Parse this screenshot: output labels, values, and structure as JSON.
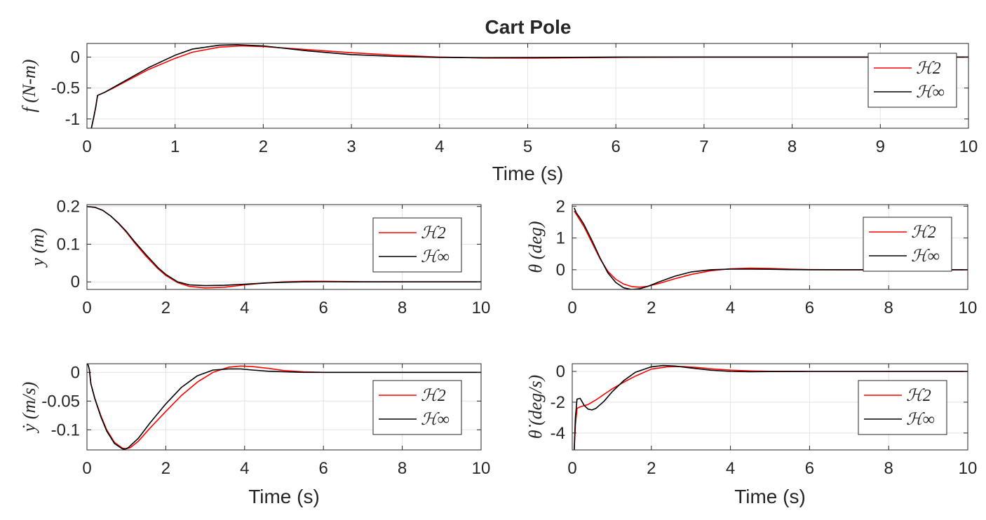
{
  "figure": {
    "title": "Cart Pole"
  },
  "chart_data": [
    {
      "type": "line",
      "title": "Cart Pole",
      "xlabel": "Time (s)",
      "ylabel": "f (N-m)",
      "xlim": [
        0,
        10
      ],
      "ylim": [
        -1.15,
        0.22
      ],
      "xticks": [
        0,
        1,
        2,
        3,
        4,
        5,
        6,
        7,
        8,
        9,
        10
      ],
      "yticks": [
        -1,
        -0.5,
        0
      ],
      "ytick_labels": [
        "-1",
        "-0.5",
        "0"
      ],
      "grid": true,
      "legend": "top-right",
      "series": [
        {
          "name": "H_2",
          "color": "#ff0000",
          "x": [
            0.05,
            0.08,
            0.1,
            0.12,
            0.2,
            0.3,
            0.5,
            0.7,
            1.0,
            1.2,
            1.5,
            1.75,
            2.0,
            2.5,
            3.0,
            3.5,
            4.0,
            4.5,
            5.0,
            5.5,
            6.0,
            7.0,
            8.0,
            9.0,
            10.0
          ],
          "values": [
            -1.15,
            -0.95,
            -0.8,
            -0.62,
            -0.57,
            -0.5,
            -0.35,
            -0.2,
            -0.02,
            0.08,
            0.16,
            0.18,
            0.17,
            0.12,
            0.07,
            0.03,
            0.0,
            -0.015,
            -0.018,
            -0.012,
            -0.005,
            0.0,
            0.0,
            0.0,
            0.0
          ]
        },
        {
          "name": "H_inf",
          "color": "#000000",
          "x": [
            0.05,
            0.08,
            0.1,
            0.12,
            0.2,
            0.3,
            0.5,
            0.7,
            1.0,
            1.2,
            1.5,
            1.7,
            2.0,
            2.5,
            3.0,
            3.5,
            4.0,
            4.5,
            5.0,
            5.5,
            6.0,
            7.0,
            8.0,
            9.0,
            10.0
          ],
          "values": [
            -1.15,
            -0.95,
            -0.8,
            -0.62,
            -0.57,
            -0.49,
            -0.33,
            -0.17,
            0.03,
            0.13,
            0.19,
            0.2,
            0.18,
            0.1,
            0.04,
            0.01,
            -0.005,
            -0.01,
            -0.008,
            -0.004,
            0.0,
            0.0,
            0.0,
            0.0,
            0.0
          ]
        }
      ],
      "legend_labels": [
        "ℋ2",
        "ℋ∞"
      ]
    },
    {
      "type": "line",
      "title": "",
      "xlabel": "",
      "ylabel": "y (m)",
      "xlim": [
        0,
        10
      ],
      "ylim": [
        -0.02,
        0.205
      ],
      "xticks": [
        0,
        2,
        4,
        6,
        8,
        10
      ],
      "yticks": [
        0,
        0.1,
        0.2
      ],
      "ytick_labels": [
        "0",
        "0.1",
        "0.2"
      ],
      "grid": true,
      "legend": "right",
      "series": [
        {
          "name": "H_2",
          "color": "#ff0000",
          "x": [
            0,
            0.2,
            0.4,
            0.6,
            0.8,
            1.0,
            1.2,
            1.5,
            1.8,
            2.0,
            2.3,
            2.6,
            3.0,
            3.5,
            4.0,
            4.5,
            5.0,
            5.5,
            6.0,
            7.0,
            8.0,
            9.0,
            10.0
          ],
          "values": [
            0.2,
            0.198,
            0.19,
            0.175,
            0.155,
            0.132,
            0.105,
            0.068,
            0.035,
            0.017,
            -0.002,
            -0.012,
            -0.016,
            -0.014,
            -0.008,
            -0.003,
            0.0,
            0.0015,
            0.0015,
            0.0005,
            0.0,
            0.0,
            0.0
          ]
        },
        {
          "name": "H_inf",
          "color": "#000000",
          "x": [
            0,
            0.2,
            0.4,
            0.6,
            0.8,
            1.0,
            1.2,
            1.5,
            1.8,
            2.0,
            2.3,
            2.6,
            3.0,
            3.5,
            4.0,
            4.5,
            5.0,
            5.5,
            6.0,
            7.0,
            8.0,
            9.0,
            10.0
          ],
          "values": [
            0.2,
            0.198,
            0.19,
            0.175,
            0.156,
            0.134,
            0.108,
            0.072,
            0.038,
            0.02,
            0.0,
            -0.008,
            -0.01,
            -0.009,
            -0.006,
            -0.003,
            -0.001,
            0.0,
            0.0005,
            0.0,
            0.0,
            0.0,
            0.0
          ]
        }
      ],
      "legend_labels": [
        "ℋ2",
        "ℋ∞"
      ]
    },
    {
      "type": "line",
      "title": "",
      "xlabel": "",
      "ylabel": "θ (deg)",
      "xlim": [
        0,
        10
      ],
      "ylim": [
        -0.62,
        2.05
      ],
      "xticks": [
        0,
        2,
        4,
        6,
        8,
        10
      ],
      "yticks": [
        0,
        1,
        2
      ],
      "ytick_labels": [
        "0",
        "1",
        "2"
      ],
      "grid": true,
      "legend": "top-right",
      "series": [
        {
          "name": "H_2",
          "color": "#ff0000",
          "x": [
            0.05,
            0.1,
            0.2,
            0.3,
            0.5,
            0.7,
            0.9,
            1.1,
            1.3,
            1.5,
            1.7,
            1.9,
            2.2,
            2.6,
            3.0,
            3.5,
            4.0,
            4.5,
            5.0,
            5.5,
            6.0,
            7.0,
            8.0,
            9.0,
            10.0
          ],
          "values": [
            1.85,
            1.75,
            1.55,
            1.35,
            0.85,
            0.35,
            -0.05,
            -0.3,
            -0.45,
            -0.53,
            -0.55,
            -0.52,
            -0.43,
            -0.28,
            -0.15,
            -0.03,
            0.03,
            0.05,
            0.04,
            0.02,
            0.005,
            0.0,
            0.0,
            0.0,
            0.0
          ]
        },
        {
          "name": "H_inf",
          "color": "#000000",
          "x": [
            0.05,
            0.1,
            0.2,
            0.3,
            0.5,
            0.7,
            0.9,
            1.1,
            1.3,
            1.5,
            1.7,
            1.9,
            2.2,
            2.6,
            3.0,
            3.5,
            4.0,
            4.5,
            5.0,
            5.5,
            6.0,
            7.0,
            8.0,
            9.0,
            10.0
          ],
          "values": [
            1.95,
            1.8,
            1.62,
            1.42,
            0.92,
            0.38,
            -0.1,
            -0.4,
            -0.57,
            -0.62,
            -0.6,
            -0.53,
            -0.38,
            -0.2,
            -0.07,
            0.0,
            0.02,
            0.02,
            0.015,
            0.005,
            0.0,
            0.0,
            0.0,
            0.0,
            0.0
          ]
        }
      ],
      "legend_labels": [
        "ℋ2",
        "ℋ∞"
      ]
    },
    {
      "type": "line",
      "title": "",
      "xlabel": "Time (s)",
      "ylabel": "ẏ (m/s)",
      "xlim": [
        0,
        10
      ],
      "ylim": [
        -0.135,
        0.015
      ],
      "xticks": [
        0,
        2,
        4,
        6,
        8,
        10
      ],
      "yticks": [
        -0.1,
        -0.05,
        0
      ],
      "ytick_labels": [
        "-0.1",
        "-0.05",
        "0"
      ],
      "grid": true,
      "legend": "right",
      "series": [
        {
          "name": "H_2",
          "color": "#ff0000",
          "x": [
            0.02,
            0.06,
            0.1,
            0.2,
            0.35,
            0.5,
            0.7,
            0.9,
            1.0,
            1.1,
            1.3,
            1.6,
            2.0,
            2.4,
            2.8,
            3.2,
            3.6,
            3.9,
            4.2,
            4.6,
            5.0,
            5.5,
            6.0,
            7.0,
            8.0,
            9.0,
            10.0
          ],
          "values": [
            0.015,
            0.005,
            -0.02,
            -0.045,
            -0.075,
            -0.1,
            -0.122,
            -0.132,
            -0.133,
            -0.131,
            -0.12,
            -0.097,
            -0.068,
            -0.04,
            -0.017,
            0.0,
            0.009,
            0.011,
            0.01,
            0.007,
            0.003,
            0.001,
            0.0,
            0.0,
            0.0,
            0.0,
            0.0
          ]
        },
        {
          "name": "H_inf",
          "color": "#000000",
          "x": [
            0.02,
            0.06,
            0.1,
            0.2,
            0.35,
            0.5,
            0.7,
            0.9,
            0.95,
            1.05,
            1.3,
            1.6,
            2.0,
            2.4,
            2.8,
            3.2,
            3.6,
            3.9,
            4.2,
            4.6,
            5.0,
            5.5,
            6.0,
            7.0,
            8.0,
            9.0,
            10.0
          ],
          "values": [
            0.015,
            0.005,
            -0.02,
            -0.046,
            -0.077,
            -0.102,
            -0.124,
            -0.133,
            -0.134,
            -0.131,
            -0.115,
            -0.088,
            -0.055,
            -0.026,
            -0.006,
            0.004,
            0.006,
            0.006,
            0.004,
            0.002,
            0.001,
            0.0,
            0.0,
            0.0,
            0.0,
            0.0,
            0.0
          ]
        }
      ],
      "legend_labels": [
        "ℋ2",
        "ℋ∞"
      ]
    },
    {
      "type": "line",
      "title": "",
      "xlabel": "Time (s)",
      "ylabel": "θ̇ (deg/s)",
      "xlim": [
        0,
        10
      ],
      "ylim": [
        -5.1,
        0.5
      ],
      "xticks": [
        0,
        2,
        4,
        6,
        8,
        10
      ],
      "yticks": [
        -4,
        -2,
        0
      ],
      "ytick_labels": [
        "-4",
        "-2",
        "0"
      ],
      "grid": true,
      "legend": "right",
      "series": [
        {
          "name": "H_2",
          "color": "#ff0000",
          "x": [
            0.05,
            0.08,
            0.12,
            0.2,
            0.4,
            0.6,
            0.8,
            1.0,
            1.3,
            1.6,
            2.0,
            2.4,
            2.8,
            3.2,
            3.6,
            4.0,
            4.5,
            5.0,
            6.0,
            7.0,
            8.0,
            9.0,
            10.0
          ],
          "values": [
            -5.1,
            -3.5,
            -2.4,
            -2.3,
            -2.15,
            -1.85,
            -1.5,
            -1.15,
            -0.7,
            -0.3,
            0.15,
            0.3,
            0.32,
            0.25,
            0.15,
            0.08,
            0.03,
            0.01,
            0.0,
            0.0,
            0.0,
            0.0,
            0.0
          ]
        },
        {
          "name": "H_inf",
          "color": "#000000",
          "x": [
            0.05,
            0.08,
            0.12,
            0.2,
            0.3,
            0.4,
            0.5,
            0.6,
            0.8,
            1.0,
            1.3,
            1.6,
            2.0,
            2.3,
            2.6,
            3.0,
            3.5,
            4.0,
            4.5,
            5.0,
            6.0,
            7.0,
            8.0,
            9.0,
            10.0
          ],
          "values": [
            -5.1,
            -3.0,
            -1.8,
            -1.75,
            -2.2,
            -2.45,
            -2.5,
            -2.4,
            -1.95,
            -1.35,
            -0.6,
            -0.05,
            0.3,
            0.38,
            0.35,
            0.22,
            0.08,
            0.0,
            -0.02,
            -0.01,
            0.0,
            0.0,
            0.0,
            0.0,
            0.0
          ]
        }
      ],
      "legend_labels": [
        "ℋ2",
        "ℋ∞"
      ]
    }
  ]
}
